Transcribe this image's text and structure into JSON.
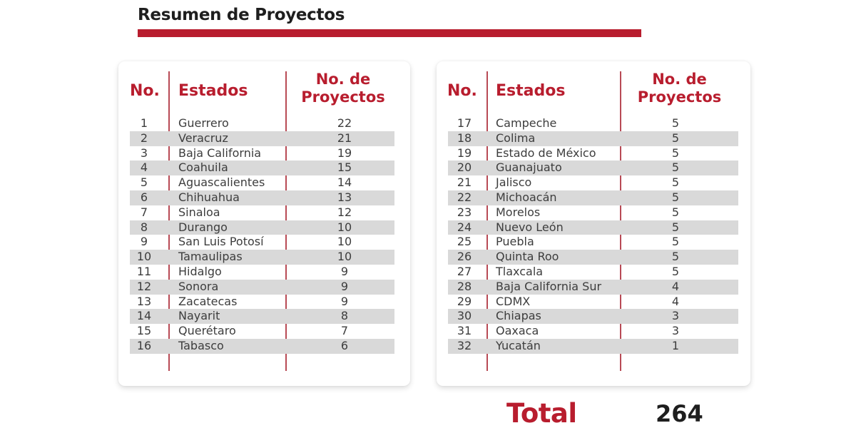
{
  "title": "Resumen de Proyectos",
  "colors": {
    "accent": "#b81d2e",
    "text": "#3d3d3d",
    "row_shade": "#d9d9d9",
    "divider": "#b84a55"
  },
  "table_headers": {
    "no": "No.",
    "estado": "Estados",
    "proyectos_line1": "No. de",
    "proyectos_line2": "Proyectos"
  },
  "left_table": [
    {
      "no": "1",
      "estado": "Guerrero",
      "proyectos": "22"
    },
    {
      "no": "2",
      "estado": "Veracruz",
      "proyectos": "21"
    },
    {
      "no": "3",
      "estado": "Baja California",
      "proyectos": "19"
    },
    {
      "no": "4",
      "estado": "Coahuila",
      "proyectos": "15"
    },
    {
      "no": "5",
      "estado": "Aguascalientes",
      "proyectos": "14"
    },
    {
      "no": "6",
      "estado": "Chihuahua",
      "proyectos": "13"
    },
    {
      "no": "7",
      "estado": "Sinaloa",
      "proyectos": "12"
    },
    {
      "no": "8",
      "estado": "Durango",
      "proyectos": "10"
    },
    {
      "no": "9",
      "estado": "San Luis Potosí",
      "proyectos": "10"
    },
    {
      "no": "10",
      "estado": "Tamaulipas",
      "proyectos": "10"
    },
    {
      "no": "11",
      "estado": "Hidalgo",
      "proyectos": "9"
    },
    {
      "no": "12",
      "estado": "Sonora",
      "proyectos": "9"
    },
    {
      "no": "13",
      "estado": "Zacatecas",
      "proyectos": "9"
    },
    {
      "no": "14",
      "estado": "Nayarit",
      "proyectos": "8"
    },
    {
      "no": "15",
      "estado": "Querétaro",
      "proyectos": "7"
    },
    {
      "no": "16",
      "estado": "Tabasco",
      "proyectos": "6"
    }
  ],
  "right_table": [
    {
      "no": "17",
      "estado": "Campeche",
      "proyectos": "5"
    },
    {
      "no": "18",
      "estado": "Colima",
      "proyectos": "5"
    },
    {
      "no": "19",
      "estado": "Estado de México",
      "proyectos": "5"
    },
    {
      "no": "20",
      "estado": "Guanajuato",
      "proyectos": "5"
    },
    {
      "no": "21",
      "estado": "Jalisco",
      "proyectos": "5"
    },
    {
      "no": "22",
      "estado": "Michoacán",
      "proyectos": "5"
    },
    {
      "no": "23",
      "estado": "Morelos",
      "proyectos": "5"
    },
    {
      "no": "24",
      "estado": "Nuevo León",
      "proyectos": "5"
    },
    {
      "no": "25",
      "estado": "Puebla",
      "proyectos": "5"
    },
    {
      "no": "26",
      "estado": "Quinta Roo",
      "proyectos": "5"
    },
    {
      "no": "27",
      "estado": "Tlaxcala",
      "proyectos": "5"
    },
    {
      "no": "28",
      "estado": "Baja California Sur",
      "proyectos": "4"
    },
    {
      "no": "29",
      "estado": "CDMX",
      "proyectos": "4"
    },
    {
      "no": "30",
      "estado": "Chiapas",
      "proyectos": "3"
    },
    {
      "no": "31",
      "estado": "Oaxaca",
      "proyectos": "3"
    },
    {
      "no": "32",
      "estado": "Yucatán",
      "proyectos": "1"
    }
  ],
  "total": {
    "label": "Total",
    "value": "264"
  }
}
